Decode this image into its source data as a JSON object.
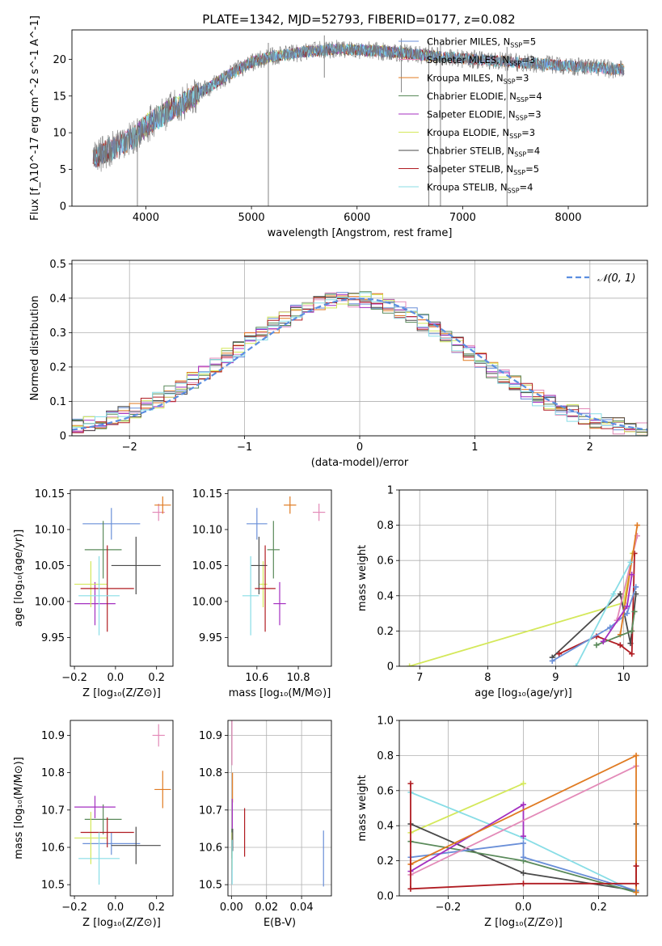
{
  "figure_title": "PLATE=1342, MJD=52793, FIBERID=0177, z=0.082",
  "colors": {
    "chabrier_miles": "#6a8fd8",
    "salpeter_miles": "#e38ab8",
    "kroupa_miles": "#e07b22",
    "chabrier_elodie": "#5a8a5a",
    "salpeter_elodie": "#a42fc0",
    "kroupa_elodie": "#d4e85a",
    "chabrier_stelib": "#4a4a4a",
    "salpeter_stelib": "#b01c22",
    "kroupa_stelib": "#88dde6",
    "normal_curve": "#5b8ee0",
    "grid": "#b0b0b0"
  },
  "chart_data": [
    {
      "id": "spectrum",
      "type": "line",
      "xlabel": "wavelength [Angstrom, rest frame]",
      "ylabel": "Flux [f_λ10^-17 erg cm^-2 s^-1 A^-1]",
      "xlim": [
        3300,
        8750
      ],
      "ylim": [
        0,
        24
      ],
      "xticks": [
        4000,
        5000,
        6000,
        7000,
        8000
      ],
      "yticks": [
        0,
        5,
        10,
        15,
        20
      ],
      "grid": false,
      "legend_position": "top-right",
      "legend": [
        {
          "label": "Chabrier MILES, N",
          "sub": "SSP",
          "suffix": "=5",
          "color_key": "chabrier_miles"
        },
        {
          "label": "Salpeter MILES, N",
          "sub": "SSP",
          "suffix": "=3",
          "color_key": "salpeter_miles"
        },
        {
          "label": "Kroupa MILES, N",
          "sub": "SSP",
          "suffix": "=3",
          "color_key": "kroupa_miles"
        },
        {
          "label": "Chabrier ELODIE, N",
          "sub": "SSP",
          "suffix": "=4",
          "color_key": "chabrier_elodie"
        },
        {
          "label": "Salpeter ELODIE, N",
          "sub": "SSP",
          "suffix": "=3",
          "color_key": "salpeter_elodie"
        },
        {
          "label": "Kroupa ELODIE, N",
          "sub": "SSP",
          "suffix": "=3",
          "color_key": "kroupa_elodie"
        },
        {
          "label": "Chabrier STELIB, N",
          "sub": "SSP",
          "suffix": "=4",
          "color_key": "chabrier_stelib"
        },
        {
          "label": "Salpeter STELIB, N",
          "sub": "SSP",
          "suffix": "=5",
          "color_key": "salpeter_stelib"
        },
        {
          "label": "Kroupa STELIB, N",
          "sub": "SSP",
          "suffix": "=4",
          "color_key": "kroupa_stelib"
        }
      ],
      "continuum": {
        "x": [
          3500,
          3700,
          3900,
          4000,
          4200,
          4400,
          4600,
          4800,
          5000,
          5200,
          5500,
          5800,
          6000,
          6300,
          6600,
          6900,
          7200,
          7500,
          7800,
          8100,
          8500
        ],
        "y": [
          6.5,
          8.0,
          9.5,
          11.0,
          12.8,
          14.5,
          16.2,
          18.0,
          19.6,
          20.4,
          21.0,
          21.4,
          21.3,
          21.0,
          20.6,
          20.2,
          19.9,
          19.6,
          19.3,
          19.0,
          18.6
        ]
      },
      "features": [
        {
          "x": 5160,
          "y": 0
        },
        {
          "x": 6680,
          "y": 0
        },
        {
          "x": 6790,
          "y": 0
        },
        {
          "x": 7420,
          "y": 0
        },
        {
          "x": 3920,
          "y": 0
        },
        {
          "x": 6420,
          "y": 15.5
        },
        {
          "x": 5690,
          "y": 17.5
        }
      ]
    },
    {
      "id": "residual_hist",
      "type": "bar",
      "xlabel": "(data-model)/error",
      "ylabel": "Normed distribution",
      "xlim": [
        -2.5,
        2.5
      ],
      "ylim": [
        0,
        0.51
      ],
      "xticks": [
        -2,
        -1,
        0,
        1,
        2
      ],
      "yticks": [
        0.0,
        0.1,
        0.2,
        0.3,
        0.4,
        0.5
      ],
      "grid": true,
      "legend_position": "top-right",
      "legend_label": "𝒩(0, 1)",
      "bin_width": 0.1,
      "bin_start": -2.5,
      "gaussian": {
        "mean": 0,
        "sigma": 1
      }
    },
    {
      "id": "age_vs_Z",
      "type": "scatter",
      "xlabel": "Z [log₁₀(Z/Z⊙)]",
      "ylabel": "age  [log₁₀(age/yr)]",
      "xlim": [
        -0.22,
        0.28
      ],
      "ylim": [
        9.91,
        10.155
      ],
      "xticks": [
        -0.2,
        0.0,
        0.2
      ],
      "yticks": [
        9.95,
        10.0,
        10.05,
        10.1,
        10.15
      ],
      "grid": false,
      "points": [
        {
          "color_key": "chabrier_miles",
          "x": -0.02,
          "xerr": 0.14,
          "y": 10.108,
          "yerr": 0.022
        },
        {
          "color_key": "salpeter_miles",
          "x": 0.21,
          "xerr": 0.03,
          "y": 10.124,
          "yerr": 0.012
        },
        {
          "color_key": "kroupa_miles",
          "x": 0.23,
          "xerr": 0.04,
          "y": 10.134,
          "yerr": 0.012
        },
        {
          "color_key": "chabrier_elodie",
          "x": -0.06,
          "xerr": 0.09,
          "y": 10.072,
          "yerr": 0.04
        },
        {
          "color_key": "salpeter_elodie",
          "x": -0.1,
          "xerr": 0.1,
          "y": 9.997,
          "yerr": 0.03
        },
        {
          "color_key": "kroupa_elodie",
          "x": -0.12,
          "xerr": 0.08,
          "y": 10.024,
          "yerr": 0.032
        },
        {
          "color_key": "chabrier_stelib",
          "x": 0.1,
          "xerr": 0.12,
          "y": 10.05,
          "yerr": 0.04
        },
        {
          "color_key": "salpeter_stelib",
          "x": -0.04,
          "xerr": 0.13,
          "y": 10.018,
          "yerr": 0.06
        },
        {
          "color_key": "kroupa_stelib",
          "x": -0.08,
          "xerr": 0.1,
          "y": 10.008,
          "yerr": 0.055
        }
      ]
    },
    {
      "id": "age_vs_mass",
      "type": "scatter",
      "xlabel": "mass [log₁₀(M/M⊙)]",
      "ylabel": "",
      "xlim": [
        10.46,
        10.96
      ],
      "ylim": [
        9.91,
        10.155
      ],
      "xticks": [
        10.6,
        10.8
      ],
      "yticks": [
        9.95,
        10.0,
        10.05,
        10.1,
        10.15
      ],
      "grid": false,
      "points": [
        {
          "color_key": "chabrier_miles",
          "x": 10.6,
          "xerr": 0.05,
          "y": 10.108,
          "yerr": 0.022
        },
        {
          "color_key": "salpeter_miles",
          "x": 10.9,
          "xerr": 0.03,
          "y": 10.124,
          "yerr": 0.012
        },
        {
          "color_key": "kroupa_miles",
          "x": 10.76,
          "xerr": 0.03,
          "y": 10.134,
          "yerr": 0.012
        },
        {
          "color_key": "chabrier_elodie",
          "x": 10.68,
          "xerr": 0.03,
          "y": 10.072,
          "yerr": 0.04
        },
        {
          "color_key": "salpeter_elodie",
          "x": 10.71,
          "xerr": 0.03,
          "y": 9.997,
          "yerr": 0.03
        },
        {
          "color_key": "kroupa_elodie",
          "x": 10.63,
          "xerr": 0.02,
          "y": 10.024,
          "yerr": 0.032
        },
        {
          "color_key": "chabrier_stelib",
          "x": 10.61,
          "xerr": 0.04,
          "y": 10.05,
          "yerr": 0.04
        },
        {
          "color_key": "salpeter_stelib",
          "x": 10.64,
          "xerr": 0.05,
          "y": 10.018,
          "yerr": 0.06
        },
        {
          "color_key": "kroupa_stelib",
          "x": 10.57,
          "xerr": 0.04,
          "y": 10.008,
          "yerr": 0.055
        }
      ]
    },
    {
      "id": "weight_vs_age",
      "type": "line",
      "xlabel": "age  [log₁₀(age/yr)]",
      "ylabel": "mass weight",
      "xlim": [
        6.7,
        10.35
      ],
      "ylim": [
        0,
        1.0
      ],
      "xticks": [
        7,
        8,
        9,
        10
      ],
      "yticks": [
        0.0,
        0.2,
        0.4,
        0.6,
        0.8,
        1.0
      ],
      "grid": true,
      "series": [
        {
          "color_key": "kroupa_elodie",
          "x": [
            6.85,
            10.0,
            10.13
          ],
          "y": [
            0.0,
            0.36,
            0.64
          ]
        },
        {
          "color_key": "chabrier_stelib",
          "x": [
            8.95,
            9.95,
            10.1,
            10.18
          ],
          "y": [
            0.05,
            0.41,
            0.13,
            0.41
          ]
        },
        {
          "color_key": "salpeter_stelib",
          "x": [
            9.05,
            9.6,
            9.95,
            10.12,
            10.16
          ],
          "y": [
            0.07,
            0.17,
            0.12,
            0.07,
            0.64
          ]
        },
        {
          "color_key": "chabrier_miles",
          "x": [
            8.95,
            9.8,
            10.05,
            10.18
          ],
          "y": [
            0.03,
            0.22,
            0.3,
            0.45
          ]
        },
        {
          "color_key": "salpeter_miles",
          "x": [
            9.9,
            10.2
          ],
          "y": [
            0.26,
            0.74
          ]
        },
        {
          "color_key": "kroupa_miles",
          "x": [
            9.95,
            10.2
          ],
          "y": [
            0.18,
            0.8
          ]
        },
        {
          "color_key": "chabrier_elodie",
          "x": [
            9.6,
            10.12,
            10.16
          ],
          "y": [
            0.12,
            0.2,
            0.31
          ]
        },
        {
          "color_key": "salpeter_elodie",
          "x": [
            9.7,
            10.05,
            10.12
          ],
          "y": [
            0.14,
            0.34,
            0.52
          ]
        },
        {
          "color_key": "kroupa_stelib",
          "x": [
            9.3,
            9.85,
            10.1
          ],
          "y": [
            0.0,
            0.41,
            0.59
          ]
        }
      ]
    },
    {
      "id": "mass_vs_Z",
      "type": "scatter",
      "xlabel": "Z [log₁₀(Z/Z⊙)]",
      "ylabel": "mass [log₁₀(M/M⊙)]",
      "xlim": [
        -0.22,
        0.28
      ],
      "ylim": [
        10.47,
        10.94
      ],
      "xticks": [
        -0.2,
        0.0,
        0.2
      ],
      "yticks": [
        10.5,
        10.6,
        10.7,
        10.8,
        10.9
      ],
      "grid": false,
      "points": [
        {
          "color_key": "chabrier_miles",
          "x": -0.02,
          "xerr": 0.14,
          "y": 10.61,
          "yerr": 0.03
        },
        {
          "color_key": "salpeter_miles",
          "x": 0.21,
          "xerr": 0.03,
          "y": 10.9,
          "yerr": 0.03
        },
        {
          "color_key": "kroupa_miles",
          "x": 0.23,
          "xerr": 0.04,
          "y": 10.755,
          "yerr": 0.05
        },
        {
          "color_key": "chabrier_elodie",
          "x": -0.06,
          "xerr": 0.09,
          "y": 10.675,
          "yerr": 0.04
        },
        {
          "color_key": "salpeter_elodie",
          "x": -0.1,
          "xerr": 0.1,
          "y": 10.708,
          "yerr": 0.03
        },
        {
          "color_key": "kroupa_elodie",
          "x": -0.12,
          "xerr": 0.08,
          "y": 10.625,
          "yerr": 0.07
        },
        {
          "color_key": "chabrier_stelib",
          "x": 0.1,
          "xerr": 0.12,
          "y": 10.605,
          "yerr": 0.05
        },
        {
          "color_key": "salpeter_stelib",
          "x": -0.04,
          "xerr": 0.13,
          "y": 10.64,
          "yerr": 0.04
        },
        {
          "color_key": "kroupa_stelib",
          "x": -0.08,
          "xerr": 0.1,
          "y": 10.57,
          "yerr": 0.07
        }
      ]
    },
    {
      "id": "mass_vs_ebv",
      "type": "scatter",
      "xlabel": "E(B-V)",
      "ylabel": "",
      "xlim": [
        -0.002,
        0.057
      ],
      "ylim": [
        10.47,
        10.94
      ],
      "xticks": [
        0.0,
        0.02,
        0.04
      ],
      "yticks": [
        10.5,
        10.6,
        10.7,
        10.8,
        10.9
      ],
      "grid": true,
      "points": [
        {
          "color_key": "chabrier_miles",
          "x": 0.0525,
          "xerr": 0,
          "y": 10.57,
          "yerr": 0.075
        },
        {
          "color_key": "salpeter_miles",
          "x": 0.0003,
          "xerr": 0,
          "y": 10.88,
          "yerr": 0.06
        },
        {
          "color_key": "kroupa_miles",
          "x": 0.0006,
          "xerr": 0,
          "y": 10.76,
          "yerr": 0.04
        },
        {
          "color_key": "chabrier_elodie",
          "x": 0.0003,
          "xerr": 0,
          "y": 10.61,
          "yerr": 0.04
        },
        {
          "color_key": "salpeter_elodie",
          "x": 0.0005,
          "xerr": 0,
          "y": 10.69,
          "yerr": 0.04
        },
        {
          "color_key": "kroupa_elodie",
          "x": 0.0004,
          "xerr": 0,
          "y": 10.59,
          "yerr": 0.05
        },
        {
          "color_key": "chabrier_stelib",
          "x": 0.0007,
          "xerr": 0,
          "y": 10.62,
          "yerr": 0.03
        },
        {
          "color_key": "salpeter_stelib",
          "x": 0.0075,
          "xerr": 0,
          "y": 10.64,
          "yerr": 0.065
        },
        {
          "color_key": "kroupa_stelib",
          "x": 0.0004,
          "xerr": 0,
          "y": 10.56,
          "yerr": 0.06
        }
      ]
    },
    {
      "id": "weight_vs_Z",
      "type": "line",
      "xlabel": "Z [log₁₀(Z/Z⊙)]",
      "ylabel": "mass weight",
      "xlim": [
        -0.33,
        0.33
      ],
      "ylim": [
        0,
        1.0
      ],
      "xticks": [
        -0.2,
        0.0,
        0.2
      ],
      "yticks": [
        0.0,
        0.2,
        0.4,
        0.6,
        0.8,
        1.0
      ],
      "grid": true,
      "series": [
        {
          "color_key": "kroupa_elodie",
          "x": [
            -0.3,
            0.0
          ],
          "y": [
            0.36,
            0.64
          ]
        },
        {
          "color_key": "kroupa_stelib",
          "x": [
            -0.3,
            0.0,
            0.3
          ],
          "y": [
            0.59,
            0.33,
            0.02
          ]
        },
        {
          "color_key": "chabrier_stelib",
          "x": [
            -0.3,
            0.0,
            0.3,
            0.3
          ],
          "y": [
            0.41,
            0.13,
            0.03,
            0.41
          ]
        },
        {
          "color_key": "chabrier_elodie",
          "x": [
            -0.3,
            0.0,
            0.3
          ],
          "y": [
            0.31,
            0.2,
            0.02
          ]
        },
        {
          "color_key": "chabrier_miles",
          "x": [
            -0.3,
            0.0,
            0.0,
            0.3
          ],
          "y": [
            0.22,
            0.3,
            0.22,
            0.03
          ]
        },
        {
          "color_key": "salpeter_elodie",
          "x": [
            -0.3,
            0.0,
            0.0
          ],
          "y": [
            0.14,
            0.52,
            0.34
          ]
        },
        {
          "color_key": "salpeter_miles",
          "x": [
            -0.3,
            0.3
          ],
          "y": [
            0.12,
            0.74
          ]
        },
        {
          "color_key": "kroupa_miles",
          "x": [
            -0.3,
            0.3,
            0.3
          ],
          "y": [
            0.18,
            0.8,
            0.02
          ]
        },
        {
          "color_key": "salpeter_stelib",
          "x": [
            -0.3,
            -0.3,
            0.0,
            0.3,
            0.3
          ],
          "y": [
            0.64,
            0.04,
            0.07,
            0.07,
            0.17
          ]
        }
      ]
    }
  ]
}
